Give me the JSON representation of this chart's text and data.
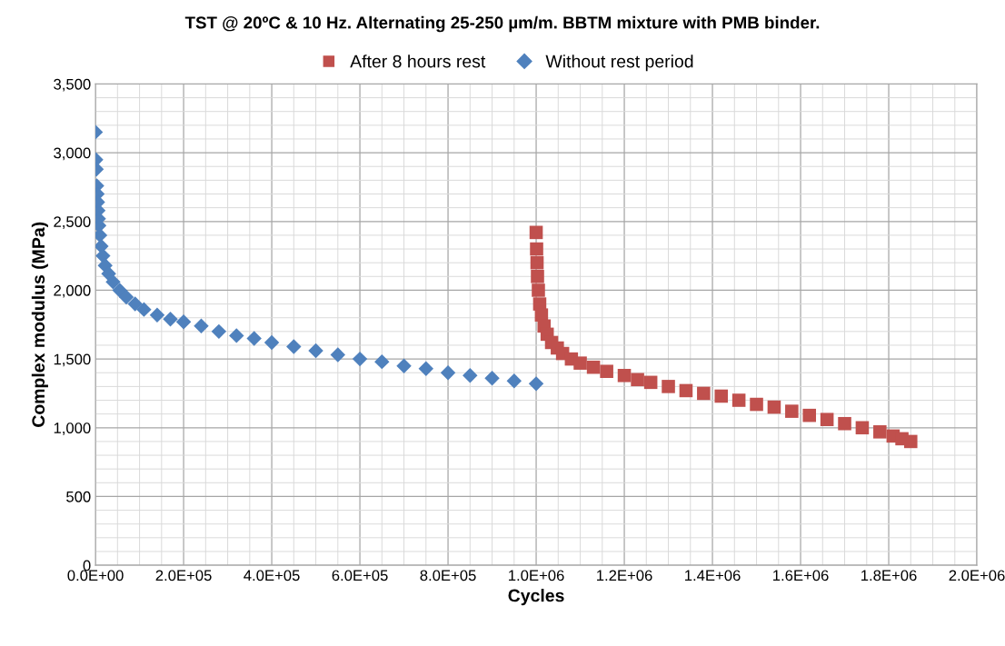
{
  "chart_data": {
    "type": "scatter",
    "title": "TST @ 20ºC & 10 Hz. Alternating 25-250 µm/m. BBTM mixture with PMB binder.",
    "xlabel": "Cycles",
    "ylabel": "Complex modulus (MPa)",
    "series": [
      {
        "name": "After 8 hours rest",
        "color": "#c0504d",
        "marker": "square",
        "x": [
          1000000,
          1001000,
          1002000,
          1003000,
          1005000,
          1008000,
          1012000,
          1018000,
          1025000,
          1035000,
          1048000,
          1060000,
          1080000,
          1100000,
          1130000,
          1160000,
          1200000,
          1230000,
          1260000,
          1300000,
          1340000,
          1380000,
          1420000,
          1460000,
          1500000,
          1540000,
          1580000,
          1620000,
          1660000,
          1700000,
          1740000,
          1780000,
          1810000,
          1830000,
          1850000
        ],
        "values": [
          2420,
          2300,
          2200,
          2100,
          2000,
          1900,
          1820,
          1740,
          1680,
          1620,
          1580,
          1540,
          1500,
          1470,
          1440,
          1410,
          1380,
          1350,
          1330,
          1300,
          1270,
          1250,
          1230,
          1200,
          1170,
          1150,
          1120,
          1090,
          1060,
          1030,
          1000,
          970,
          940,
          920,
          900
        ]
      },
      {
        "name": "Without rest period",
        "color": "#4f81bd",
        "marker": "diamond",
        "x": [
          0,
          1000,
          2000,
          3000,
          4000,
          5000,
          6000,
          7000,
          8000,
          10000,
          13000,
          17000,
          22000,
          30000,
          40000,
          55000,
          70000,
          90000,
          110000,
          140000,
          170000,
          200000,
          240000,
          280000,
          320000,
          360000,
          400000,
          450000,
          500000,
          550000,
          600000,
          650000,
          700000,
          750000,
          800000,
          850000,
          900000,
          950000,
          1000000
        ],
        "values": [
          3150,
          2950,
          2880,
          2760,
          2700,
          2640,
          2580,
          2520,
          2470,
          2400,
          2320,
          2250,
          2180,
          2120,
          2060,
          2000,
          1950,
          1900,
          1860,
          1820,
          1790,
          1770,
          1740,
          1700,
          1670,
          1650,
          1620,
          1590,
          1560,
          1530,
          1500,
          1480,
          1450,
          1430,
          1400,
          1380,
          1360,
          1340,
          1320
        ]
      }
    ],
    "xlim": [
      0,
      2000000
    ],
    "xticks": [
      {
        "value": 0,
        "label": "0.0E+00"
      },
      {
        "value": 200000,
        "label": "2.0E+05"
      },
      {
        "value": 400000,
        "label": "4.0E+05"
      },
      {
        "value": 600000,
        "label": "6.0E+05"
      },
      {
        "value": 800000,
        "label": "8.0E+05"
      },
      {
        "value": 1000000,
        "label": "1.0E+06"
      },
      {
        "value": 1200000,
        "label": "1.2E+06"
      },
      {
        "value": 1400000,
        "label": "1.4E+06"
      },
      {
        "value": 1600000,
        "label": "1.6E+06"
      },
      {
        "value": 1800000,
        "label": "1.8E+06"
      },
      {
        "value": 2000000,
        "label": "2.0E+06"
      }
    ],
    "ylim": [
      0,
      3500
    ],
    "yticks": [
      0,
      500,
      {
        "value": 1000,
        "label": "1,000"
      },
      {
        "value": 1500,
        "label": "1,500"
      },
      {
        "value": 2000,
        "label": "2,000"
      },
      {
        "value": 2500,
        "label": "2,500"
      },
      {
        "value": 3000,
        "label": "3,000"
      },
      {
        "value": 3500,
        "label": "3,500"
      }
    ],
    "grid": true,
    "legend": "top"
  }
}
